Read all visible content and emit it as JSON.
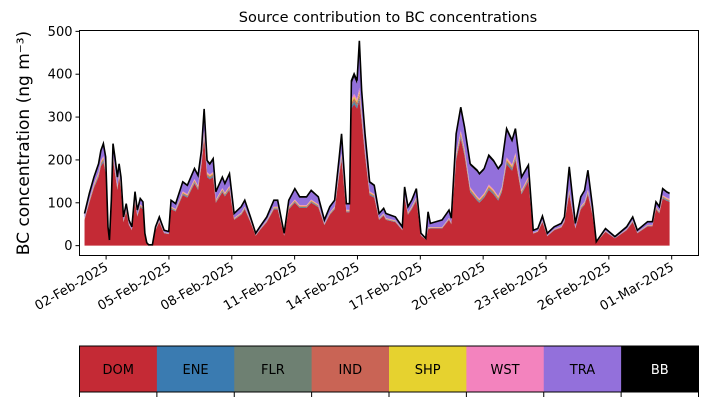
{
  "chart_data": {
    "type": "area",
    "stacked": true,
    "title": "Source contribution to BC concentrations",
    "ylabel": "BC concentration (ng m⁻³)",
    "xlabel": "",
    "ylim": [
      -23,
      502
    ],
    "xlim_day_of_feb": [
      0.73,
      30.28
    ],
    "yticks": [
      0,
      100,
      200,
      300,
      400,
      500
    ],
    "xticks": [
      {
        "day": 2,
        "label": "02-Feb-2025"
      },
      {
        "day": 5,
        "label": "05-Feb-2025"
      },
      {
        "day": 8,
        "label": "08-Feb-2025"
      },
      {
        "day": 11,
        "label": "11-Feb-2025"
      },
      {
        "day": 14,
        "label": "14-Feb-2025"
      },
      {
        "day": 17,
        "label": "17-Feb-2025"
      },
      {
        "day": 20,
        "label": "20-Feb-2025"
      },
      {
        "day": 23,
        "label": "23-Feb-2025"
      },
      {
        "day": 26,
        "label": "26-Feb-2025"
      },
      {
        "day": 29,
        "label": "01-Mar-2025"
      }
    ],
    "legend": [
      {
        "name": "DOM",
        "color": "#c42a35",
        "text_color": "#000000"
      },
      {
        "name": "ENE",
        "color": "#3a7bb1",
        "text_color": "#000000"
      },
      {
        "name": "FLR",
        "color": "#6e8072",
        "text_color": "#000000"
      },
      {
        "name": "IND",
        "color": "#c96455",
        "text_color": "#000000"
      },
      {
        "name": "SHP",
        "color": "#e6d22f",
        "text_color": "#000000"
      },
      {
        "name": "WST",
        "color": "#f383be",
        "text_color": "#000000"
      },
      {
        "name": "TRA",
        "color": "#9370db",
        "text_color": "#000000"
      },
      {
        "name": "BB",
        "color": "#000000",
        "text_color": "#ffffff"
      }
    ],
    "legend_placement": "bottom",
    "minor_shares_of_total": {
      "ENE": 0.01,
      "FLR": 0.01,
      "IND": 0.015,
      "SHP": 0.01,
      "WST": 0.015,
      "BB": 0.02
    },
    "x_day_of_feb": [
      0.97,
      1.2,
      1.42,
      1.64,
      1.75,
      1.87,
      1.98,
      2.09,
      2.16,
      2.25,
      2.33,
      2.42,
      2.54,
      2.62,
      2.71,
      2.83,
      2.96,
      3.09,
      3.23,
      3.38,
      3.49,
      3.63,
      3.76,
      3.85,
      3.94,
      4.03,
      4.21,
      4.36,
      4.54,
      4.65,
      4.77,
      4.99,
      5.1,
      5.32,
      5.66,
      5.88,
      6.22,
      6.39,
      6.55,
      6.68,
      6.82,
      6.95,
      7.11,
      7.24,
      7.55,
      7.67,
      7.89,
      8.11,
      8.45,
      8.62,
      8.89,
      9.14,
      9.34,
      9.67,
      10.01,
      10.19,
      10.5,
      10.72,
      11.01,
      11.24,
      11.57,
      11.79,
      12.13,
      12.42,
      12.68,
      12.91,
      13.13,
      13.24,
      13.4,
      13.47,
      13.62,
      13.71,
      13.84,
      13.98,
      14.09,
      14.2,
      14.36,
      14.58,
      14.8,
      15.03,
      15.25,
      15.36,
      15.81,
      16.14,
      16.25,
      16.41,
      16.59,
      16.81,
      17.03,
      17.26,
      17.37,
      17.48,
      18.04,
      18.37,
      18.48,
      18.71,
      18.93,
      19.11,
      19.38,
      19.71,
      19.82,
      20.05,
      20.27,
      20.49,
      20.72,
      20.89,
      21.12,
      21.38,
      21.54,
      21.83,
      22.16,
      22.39,
      22.61,
      22.83,
      23.06,
      23.39,
      23.73,
      23.88,
      24.11,
      24.4,
      24.66,
      24.84,
      25.0,
      25.22,
      25.4,
      25.84,
      26.29,
      26.85,
      27.14,
      27.36,
      27.85,
      28.08,
      28.25,
      28.41,
      28.57,
      28.75,
      28.9
    ],
    "total": [
      75,
      122,
      160,
      191,
      222,
      238,
      207,
      44,
      13,
      106,
      238,
      207,
      160,
      191,
      160,
      67,
      98,
      60,
      44,
      126,
      83,
      110,
      102,
      29,
      7,
      2,
      2,
      44,
      67,
      52,
      36,
      33,
      106,
      98,
      149,
      141,
      180,
      164,
      222,
      319,
      199,
      191,
      203,
      126,
      160,
      145,
      168,
      75,
      91,
      106,
      67,
      29,
      44,
      67,
      106,
      106,
      29,
      106,
      133,
      114,
      114,
      129,
      114,
      60,
      91,
      106,
      207,
      261,
      145,
      98,
      98,
      385,
      401,
      385,
      478,
      362,
      261,
      149,
      141,
      75,
      87,
      75,
      67,
      44,
      137,
      91,
      106,
      133,
      29,
      17,
      79,
      52,
      60,
      83,
      64,
      261,
      323,
      277,
      191,
      176,
      168,
      180,
      211,
      199,
      180,
      191,
      273,
      246,
      273,
      160,
      188,
      36,
      40,
      69,
      29,
      44,
      52,
      67,
      184,
      52,
      114,
      129,
      176,
      91,
      9,
      40,
      21,
      44,
      67,
      36,
      56,
      56,
      102,
      91,
      133,
      126,
      122
    ],
    "DOM": [
      60,
      100,
      135,
      160,
      185,
      195,
      170,
      36,
      11,
      88,
      200,
      170,
      130,
      160,
      130,
      55,
      80,
      48,
      36,
      100,
      68,
      90,
      85,
      24,
      5,
      2,
      2,
      36,
      55,
      42,
      29,
      27,
      85,
      80,
      118,
      112,
      145,
      130,
      185,
      250,
      160,
      155,
      160,
      100,
      125,
      115,
      130,
      60,
      72,
      85,
      55,
      23,
      36,
      55,
      85,
      85,
      23,
      85,
      100,
      88,
      88,
      100,
      90,
      48,
      72,
      85,
      165,
      200,
      115,
      78,
      78,
      320,
      330,
      320,
      340,
      290,
      210,
      118,
      112,
      60,
      70,
      60,
      55,
      36,
      110,
      72,
      85,
      105,
      23,
      14,
      38,
      40,
      40,
      60,
      50,
      200,
      250,
      210,
      125,
      105,
      100,
      112,
      130,
      120,
      105,
      125,
      190,
      175,
      200,
      120,
      150,
      28,
      32,
      55,
      22,
      36,
      42,
      55,
      120,
      40,
      85,
      95,
      120,
      70,
      7,
      32,
      17,
      36,
      55,
      29,
      45,
      45,
      85,
      75,
      110,
      105,
      102
    ]
  }
}
